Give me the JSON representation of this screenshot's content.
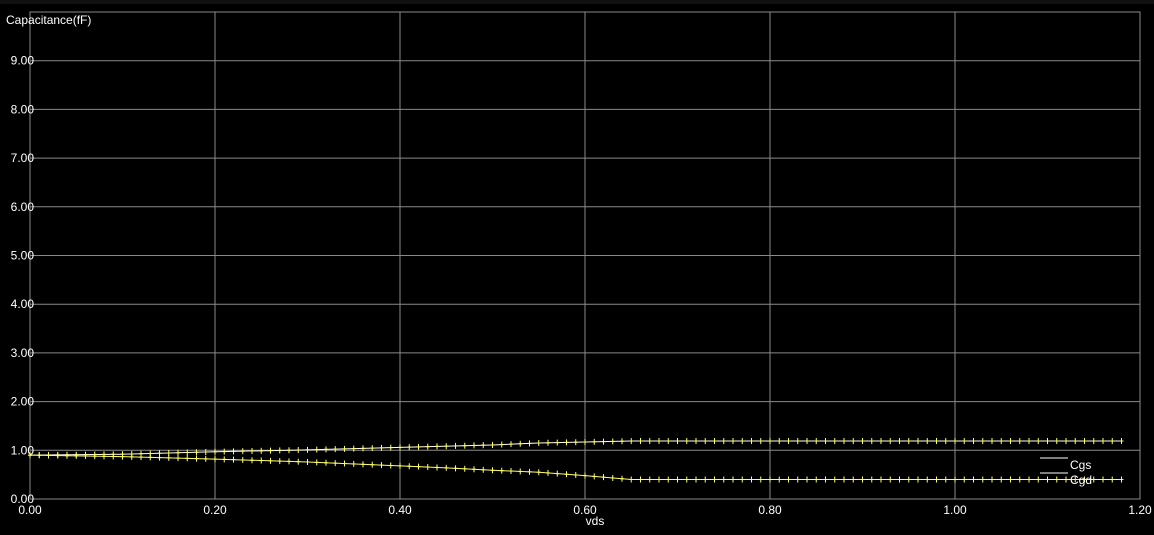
{
  "chart_data": {
    "type": "line",
    "title": "",
    "ylabel": "Capacitance(fF)",
    "xlabel": "vds",
    "xlim": [
      0.0,
      1.2
    ],
    "ylim": [
      0.0,
      10.0
    ],
    "x_ticks": [
      0.0,
      0.2,
      0.4,
      0.6,
      0.8,
      1.0,
      1.2
    ],
    "x_tick_labels": [
      "0.00",
      "0.20",
      "0.40",
      "0.60",
      "0.80",
      "1.00",
      "1.20"
    ],
    "y_ticks": [
      0,
      1,
      2,
      3,
      4,
      5,
      6,
      7,
      8,
      9
    ],
    "y_tick_labels": [
      "0.00",
      "1.00",
      "2.00",
      "3.00",
      "4.00",
      "5.00",
      "6.00",
      "7.00",
      "8.00",
      "9.00"
    ],
    "grid": true,
    "legend_position": "bottom-right",
    "background_color": "#000000",
    "grid_color": "#8a8a8a",
    "series": [
      {
        "name": "Cgs",
        "color": "#ffffff",
        "marker_color": "#ffff66",
        "x": [
          0.0,
          0.1,
          0.2,
          0.3,
          0.4,
          0.5,
          0.55,
          0.6,
          0.65,
          0.7,
          0.8,
          0.9,
          1.0,
          1.1,
          1.18
        ],
        "y": [
          0.9,
          0.92,
          0.97,
          1.01,
          1.06,
          1.11,
          1.15,
          1.17,
          1.19,
          1.19,
          1.19,
          1.19,
          1.19,
          1.19,
          1.19
        ]
      },
      {
        "name": "Cgd",
        "color": "#ffff66",
        "marker_color": "#ffff66",
        "x": [
          0.0,
          0.1,
          0.2,
          0.3,
          0.4,
          0.45,
          0.5,
          0.55,
          0.6,
          0.65,
          0.7,
          0.8,
          0.9,
          1.0,
          1.1,
          1.18
        ],
        "y": [
          0.9,
          0.87,
          0.82,
          0.76,
          0.68,
          0.64,
          0.59,
          0.55,
          0.48,
          0.4,
          0.4,
          0.4,
          0.4,
          0.4,
          0.4,
          0.4
        ]
      }
    ]
  }
}
